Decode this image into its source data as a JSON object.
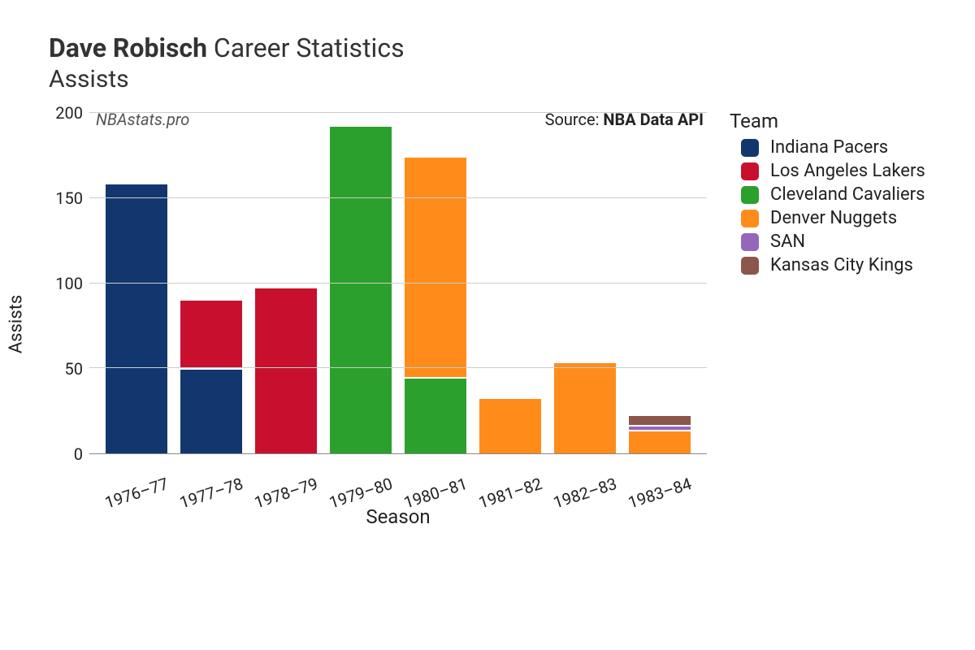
{
  "title": {
    "player": "Dave Robisch",
    "rest": "Career Statistics",
    "metric": "Assists"
  },
  "watermark": "NBAstats.pro",
  "source_prefix": "Source: ",
  "source_name": "NBA Data API",
  "chart": {
    "type": "stacked-bar",
    "ylabel": "Assists",
    "xlabel": "Season",
    "ylim": [
      0,
      200
    ],
    "ytick_step": 50,
    "grid_color": "#cccccc",
    "background_color": "#ffffff",
    "axis_color": "#888888",
    "tick_fontsize": 20,
    "label_fontsize": 22,
    "xtick_rotation_deg": -18,
    "categories": [
      "1976–77",
      "1977–78",
      "1978–79",
      "1979–80",
      "1980–81",
      "1981–82",
      "1982–83",
      "1983–84"
    ],
    "teams": [
      {
        "key": "IND",
        "name": "Indiana Pacers",
        "color": "#12376e"
      },
      {
        "key": "LAL",
        "name": "Los Angeles Lakers",
        "color": "#c8102e"
      },
      {
        "key": "CLE",
        "name": "Cleveland Cavaliers",
        "color": "#2ca02c"
      },
      {
        "key": "DEN",
        "name": "Denver Nuggets",
        "color": "#ff8c1a"
      },
      {
        "key": "SAN",
        "name": "SAN",
        "color": "#9467bd"
      },
      {
        "key": "KCK",
        "name": "Kansas City Kings",
        "color": "#8c564b"
      }
    ],
    "stacks": [
      [
        {
          "team": "IND",
          "value": 158
        }
      ],
      [
        {
          "team": "IND",
          "value": 49
        },
        {
          "team": "LAL",
          "value": 40
        }
      ],
      [
        {
          "team": "LAL",
          "value": 97
        }
      ],
      [
        {
          "team": "CLE",
          "value": 192
        }
      ],
      [
        {
          "team": "CLE",
          "value": 44
        },
        {
          "team": "DEN",
          "value": 129
        }
      ],
      [
        {
          "team": "DEN",
          "value": 32
        }
      ],
      [
        {
          "team": "DEN",
          "value": 53
        }
      ],
      [
        {
          "team": "DEN",
          "value": 13
        },
        {
          "team": "SAN",
          "value": 2
        },
        {
          "team": "KCK",
          "value": 5
        }
      ]
    ]
  },
  "legend_title": "Team"
}
